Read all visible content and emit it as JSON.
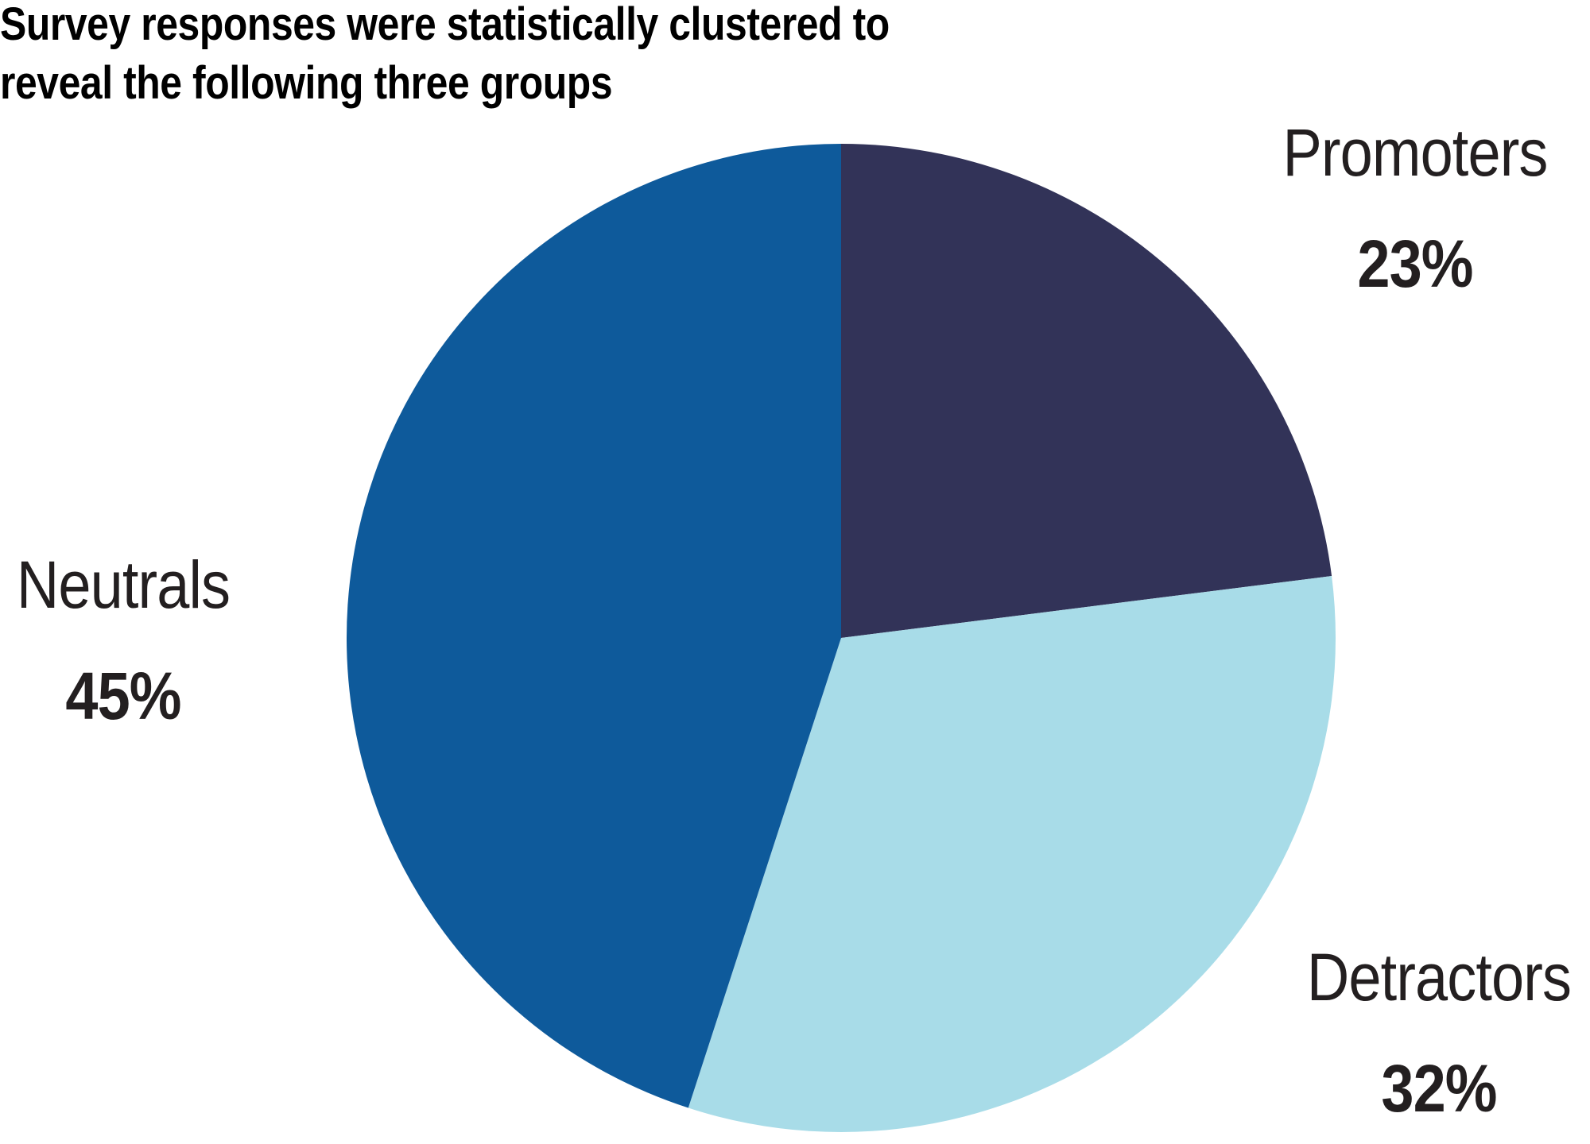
{
  "chart_data": {
    "type": "pie",
    "title": "Survey responses were statistically clustered to reveal the following three groups",
    "slices": [
      {
        "name": "Promoters",
        "value": 23,
        "label": "23%",
        "color": "#323358"
      },
      {
        "name": "Detractors",
        "value": 32,
        "label": "32%",
        "color": "#a8dce8"
      },
      {
        "name": "Neutrals",
        "value": 45,
        "label": "45%",
        "color": "#0e5a9b"
      }
    ]
  }
}
